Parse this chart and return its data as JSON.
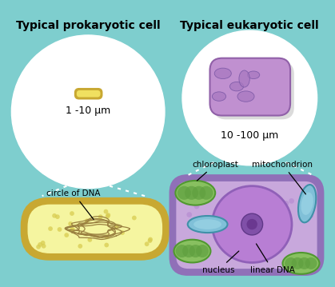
{
  "bg_color": "#7ecece",
  "title_left": "Typical prokaryotic cell",
  "title_right": "Typical eukaryotic cell",
  "label_size_left": "1 -10 μm",
  "label_size_right": "10 -100 μm",
  "label_dna_circle": "circle of DNA",
  "label_chloroplast": "chloroplast",
  "label_mitochondrion": "mitochondrion",
  "label_nucleus": "nucleus",
  "label_linear_dna": "linear DNA",
  "prokaryote_outer": "#c8a832",
  "prokaryote_inner": "#f5f5a0",
  "prokaryote_dot": "#d8cc50",
  "prokaryote_dna": "#9a8040",
  "small_bact_outer": "#c8a832",
  "small_bact_inner": "#f0e060",
  "euk_border": "#9070b8",
  "euk_fill": "#c8a8dc",
  "euk_inner": "#d8bce8",
  "nucleus_fill": "#b87ed4",
  "nucleus_border": "#9060b8",
  "nucleolus_fill": "#8050a8",
  "nucleolus_inner": "#6a3890",
  "chloro_fill": "#88c060",
  "chloro_border": "#509830",
  "chloro_inner": "#60a040",
  "mito_fill": "#80c0d8",
  "mito_border": "#4090a8",
  "small_euk_fill": "#c090d0",
  "small_euk_border": "#9060a8",
  "small_euk_organelle": "#a878c0",
  "shadow_color": "#b0b0b0"
}
